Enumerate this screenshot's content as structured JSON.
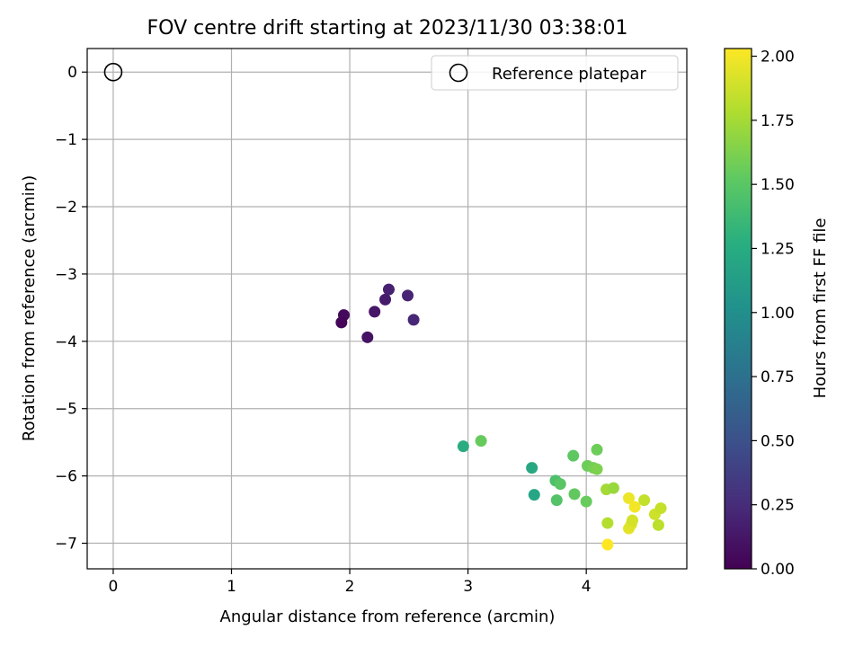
{
  "chart_data": {
    "type": "scatter",
    "title": "FOV centre drift starting at 2023/11/30 03:38:01",
    "xlabel": "Angular distance from reference (arcmin)",
    "ylabel": "Rotation from reference (arcmin)",
    "xlim": [
      -0.22,
      4.85
    ],
    "ylim": [
      -7.38,
      0.35
    ],
    "xticks": [
      0,
      1,
      2,
      3,
      4
    ],
    "xtick_labels": [
      "0",
      "1",
      "2",
      "3",
      "4"
    ],
    "yticks": [
      0,
      -1,
      -2,
      -3,
      -4,
      -5,
      -6,
      -7
    ],
    "ytick_labels": [
      "0",
      "−1",
      "−2",
      "−3",
      "−4",
      "−5",
      "−6",
      "−7"
    ],
    "grid": true,
    "legend": {
      "placement": "top-right",
      "entries": [
        {
          "label": "Reference platepar",
          "marker": "open-circle",
          "color": "#000000"
        }
      ]
    },
    "reference_point": {
      "name": "Reference platepar",
      "x": 0,
      "y": 0
    },
    "colorbar": {
      "label": "Hours from first FF file",
      "colormap": "viridis",
      "range": [
        0,
        2.03
      ],
      "ticks": [
        0,
        0.25,
        0.5,
        0.75,
        1.0,
        1.25,
        1.5,
        1.75,
        2.0
      ],
      "tick_labels": [
        "0.00",
        "0.25",
        "0.50",
        "0.75",
        "1.00",
        "1.25",
        "1.50",
        "1.75",
        "2.00"
      ]
    },
    "points": [
      {
        "x": 1.95,
        "y": -3.61,
        "c": 0.05
      },
      {
        "x": 1.93,
        "y": -3.72,
        "c": 0.03
      },
      {
        "x": 2.15,
        "y": -3.94,
        "c": 0.1
      },
      {
        "x": 2.21,
        "y": -3.56,
        "c": 0.12
      },
      {
        "x": 2.3,
        "y": -3.38,
        "c": 0.15
      },
      {
        "x": 2.33,
        "y": -3.23,
        "c": 0.18
      },
      {
        "x": 2.49,
        "y": -3.32,
        "c": 0.2
      },
      {
        "x": 2.54,
        "y": -3.68,
        "c": 0.22
      },
      {
        "x": 2.96,
        "y": -5.56,
        "c": 1.25
      },
      {
        "x": 3.11,
        "y": -5.48,
        "c": 1.55
      },
      {
        "x": 3.54,
        "y": -5.88,
        "c": 1.22
      },
      {
        "x": 3.56,
        "y": -6.28,
        "c": 1.2
      },
      {
        "x": 3.74,
        "y": -6.07,
        "c": 1.45
      },
      {
        "x": 3.75,
        "y": -6.36,
        "c": 1.48
      },
      {
        "x": 3.78,
        "y": -6.12,
        "c": 1.5
      },
      {
        "x": 3.89,
        "y": -5.7,
        "c": 1.52
      },
      {
        "x": 3.9,
        "y": -6.27,
        "c": 1.53
      },
      {
        "x": 4.0,
        "y": -6.38,
        "c": 1.56
      },
      {
        "x": 4.01,
        "y": -5.85,
        "c": 1.58
      },
      {
        "x": 4.06,
        "y": -5.88,
        "c": 1.6
      },
      {
        "x": 4.09,
        "y": -5.9,
        "c": 1.63
      },
      {
        "x": 4.09,
        "y": -5.61,
        "c": 1.58
      },
      {
        "x": 4.17,
        "y": -6.2,
        "c": 1.75
      },
      {
        "x": 4.18,
        "y": -6.7,
        "c": 1.8
      },
      {
        "x": 4.23,
        "y": -6.18,
        "c": 1.72
      },
      {
        "x": 4.18,
        "y": -7.02,
        "c": 2.03
      },
      {
        "x": 4.36,
        "y": -6.33,
        "c": 1.98
      },
      {
        "x": 4.36,
        "y": -6.78,
        "c": 1.95
      },
      {
        "x": 4.38,
        "y": -6.72,
        "c": 1.93
      },
      {
        "x": 4.39,
        "y": -6.66,
        "c": 1.9
      },
      {
        "x": 4.41,
        "y": -6.46,
        "c": 2.0
      },
      {
        "x": 4.49,
        "y": -6.36,
        "c": 1.85
      },
      {
        "x": 4.58,
        "y": -6.57,
        "c": 1.88
      },
      {
        "x": 4.61,
        "y": -6.73,
        "c": 1.83
      },
      {
        "x": 4.63,
        "y": -6.48,
        "c": 1.86
      }
    ]
  }
}
